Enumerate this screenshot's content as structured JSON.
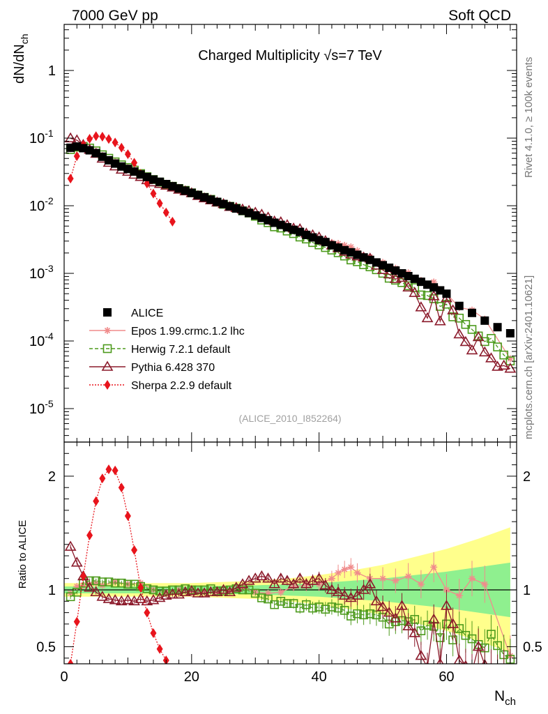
{
  "header": {
    "left": "7000 GeV pp",
    "right": "Soft QCD",
    "side_top": "Rivet 4.1.0, ≥ 100k events",
    "side_bottom": "mcplots.cern.ch [arXiv:2401.10621]"
  },
  "chart_data": {
    "type": "scatter",
    "title": "Charged Multiplicity √s=7 TeV",
    "watermark": "(ALICE_2010_I852264)",
    "ylabel": "dN/dN_ch",
    "ratio_ylabel": "Ratio to ALICE",
    "xlabel": "N_ch",
    "xlim": [
      0,
      71
    ],
    "ylim": [
      3.2e-06,
      4.8
    ],
    "ratio_ylim": [
      0.35,
      2.3
    ],
    "x_ticks": [
      "0",
      "20",
      "40",
      "60"
    ],
    "y_ticks": [
      "10^-5",
      "10^-4",
      "10^-3",
      "10^-2",
      "10^-1",
      "1"
    ],
    "ratio_ticks": [
      "0.5",
      "1",
      "2"
    ],
    "legend": [
      {
        "name": "ALICE",
        "color": "#000000",
        "marker": "square-filled",
        "line": "none"
      },
      {
        "name": "Epos 1.99.crmc.1.2 lhc",
        "color": "#f08c8c",
        "marker": "plus-star",
        "line": "solid"
      },
      {
        "name": "Herwig 7.2.1 default",
        "color": "#4c9a1c",
        "marker": "square-open",
        "line": "dashed"
      },
      {
        "name": "Pythia 6.428 370",
        "color": "#8b1a2b",
        "marker": "triangle-open",
        "line": "solid"
      },
      {
        "name": "Sherpa 2.2.9 default",
        "color": "#e8141c",
        "marker": "diamond-filled",
        "line": "dotted"
      }
    ],
    "alice": {
      "x": [
        1,
        2,
        3,
        4,
        5,
        6,
        7,
        8,
        9,
        10,
        11,
        12,
        13,
        14,
        15,
        16,
        17,
        18,
        19,
        20,
        21,
        22,
        23,
        24,
        25,
        26,
        27,
        28,
        29,
        30,
        31,
        32,
        33,
        34,
        35,
        36,
        37,
        38,
        39,
        40,
        41,
        42,
        43,
        44,
        45,
        46,
        47,
        48,
        49,
        50,
        51,
        52,
        53,
        54,
        55,
        56,
        57,
        58,
        59,
        60,
        62,
        64,
        66,
        68,
        70
      ],
      "y": [
        0.072,
        0.075,
        0.071,
        0.066,
        0.06,
        0.053,
        0.047,
        0.042,
        0.038,
        0.035,
        0.032,
        0.029,
        0.0266,
        0.0244,
        0.0226,
        0.0209,
        0.0194,
        0.018,
        0.0167,
        0.0155,
        0.0144,
        0.0133,
        0.0123,
        0.0114,
        0.0106,
        0.0098,
        0.0091,
        0.0084,
        0.0078,
        0.0072,
        0.0066,
        0.0061,
        0.0056,
        0.0052,
        0.0048,
        0.0044,
        0.0041,
        0.0037,
        0.0034,
        0.0031,
        0.0029,
        0.0026,
        0.0024,
        0.0022,
        0.00205,
        0.00188,
        0.00172,
        0.00158,
        0.00145,
        0.00132,
        0.00121,
        0.0011,
        0.001,
        0.00091,
        0.00083,
        0.00075,
        0.00068,
        0.00062,
        0.00056,
        0.0005,
        0.00033,
        0.00026,
        0.0002,
        0.00016,
        0.00013
      ]
    },
    "ratio_band": {
      "x": [
        0,
        5,
        10,
        15,
        20,
        25,
        30,
        35,
        40,
        45,
        50,
        55,
        60,
        65,
        70
      ],
      "stat_half_width": [
        0.03,
        0.03,
        0.03,
        0.03,
        0.03,
        0.035,
        0.04,
        0.05,
        0.06,
        0.08,
        0.1,
        0.13,
        0.16,
        0.2,
        0.24
      ],
      "syst_half_width": [
        0.06,
        0.06,
        0.06,
        0.06,
        0.06,
        0.07,
        0.08,
        0.1,
        0.13,
        0.17,
        0.22,
        0.29,
        0.36,
        0.45,
        0.55
      ]
    },
    "series": [
      {
        "name": "Epos 1.99.crmc.1.2 lhc",
        "x": [
          1,
          2,
          3,
          4,
          5,
          6,
          8,
          10,
          12,
          14,
          16,
          18,
          20,
          22,
          24,
          26,
          28,
          30,
          32,
          34,
          36,
          38,
          40,
          42,
          43,
          44,
          45,
          46,
          48,
          50,
          52,
          54,
          56,
          58,
          60,
          62,
          64,
          66,
          70
        ],
        "ratio": [
          0.97,
          1.03,
          1.04,
          1.05,
          1.06,
          1.04,
          1.07,
          1.05,
          1.06,
          1.0,
          0.98,
          1.0,
          0.97,
          0.98,
          0.97,
          0.99,
          1.02,
          0.98,
          0.97,
          0.98,
          1.03,
          1.04,
          1.05,
          1.1,
          1.15,
          1.18,
          1.2,
          1.15,
          1.1,
          1.1,
          1.08,
          1.12,
          1.05,
          1.2,
          1.0,
          0.95,
          1.1,
          1.05,
          0.42
        ]
      },
      {
        "name": "Herwig 7.2.1 default",
        "x": [
          1,
          2,
          3,
          4,
          5,
          6,
          7,
          8,
          9,
          10,
          11,
          12,
          13,
          14,
          15,
          16,
          17,
          18,
          19,
          20,
          21,
          22,
          23,
          24,
          25,
          26,
          27,
          28,
          29,
          30,
          31,
          32,
          33,
          34,
          35,
          36,
          37,
          38,
          39,
          40,
          41,
          42,
          43,
          44,
          45,
          46,
          47,
          48,
          49,
          50,
          51,
          52,
          53,
          54,
          55,
          56,
          57,
          58,
          59,
          60,
          61,
          62,
          63,
          64,
          65,
          66,
          67,
          68,
          69,
          70
        ],
        "ratio": [
          0.94,
          0.98,
          1.06,
          1.08,
          1.08,
          1.07,
          1.07,
          1.06,
          1.06,
          1.05,
          1.05,
          1.03,
          1.01,
          1.0,
          0.99,
          0.99,
          1.0,
          1.0,
          1.01,
          1.0,
          1.0,
          1.0,
          1.01,
          0.99,
          0.99,
          1.0,
          1.01,
          1.0,
          1.0,
          0.97,
          0.93,
          0.92,
          0.87,
          0.9,
          0.88,
          0.88,
          0.84,
          0.87,
          0.84,
          0.85,
          0.83,
          0.85,
          0.84,
          0.82,
          0.77,
          0.79,
          0.78,
          0.79,
          0.78,
          0.76,
          0.7,
          0.72,
          0.73,
          0.72,
          0.74,
          0.64,
          0.69,
          0.68,
          0.58,
          0.7,
          0.56,
          0.66,
          0.6,
          0.57,
          0.52,
          0.49,
          0.61,
          0.51,
          0.43,
          0.39
        ]
      },
      {
        "name": "Pythia 6.428 370",
        "x": [
          1,
          2,
          3,
          4,
          5,
          6,
          7,
          8,
          9,
          10,
          11,
          12,
          13,
          14,
          15,
          16,
          17,
          18,
          19,
          20,
          21,
          22,
          23,
          24,
          25,
          26,
          27,
          28,
          29,
          30,
          31,
          32,
          33,
          34,
          35,
          36,
          37,
          38,
          39,
          40,
          41,
          42,
          43,
          44,
          45,
          46,
          47,
          48,
          49,
          50,
          51,
          52,
          53,
          54,
          55,
          56,
          57,
          58,
          59,
          60,
          61,
          62,
          63,
          64,
          65,
          66,
          67,
          68,
          69,
          70
        ],
        "ratio": [
          1.38,
          1.24,
          1.12,
          1.02,
          0.98,
          0.94,
          0.92,
          0.91,
          0.9,
          0.91,
          0.9,
          0.92,
          0.9,
          0.91,
          0.93,
          0.95,
          0.96,
          0.96,
          0.98,
          0.99,
          0.97,
          0.97,
          0.98,
          0.98,
          1.0,
          0.98,
          1.02,
          1.05,
          1.08,
          1.1,
          1.12,
          1.1,
          1.05,
          1.1,
          1.08,
          1.05,
          1.1,
          1.05,
          1.08,
          1.1,
          1.04,
          1.0,
          0.98,
          0.95,
          0.93,
          0.95,
          1.0,
          1.05,
          0.9,
          0.85,
          0.8,
          0.75,
          0.86,
          0.68,
          0.62,
          0.42,
          0.32,
          0.74,
          0.35,
          0.86,
          0.7,
          0.38,
          0.33,
          0.28,
          0.5,
          0.34,
          0.31,
          0.26,
          0.3,
          0.3
        ]
      },
      {
        "name": "Sherpa 2.2.9 default",
        "x": [
          1,
          2,
          3,
          4,
          5,
          6,
          7,
          8,
          9,
          10,
          11,
          12,
          13,
          14,
          15,
          16,
          17
        ],
        "ratio": [
          0.35,
          0.72,
          1.12,
          1.48,
          1.78,
          1.98,
          2.06,
          2.05,
          1.9,
          1.65,
          1.35,
          1.02,
          0.8,
          0.62,
          0.48,
          0.38,
          0.3
        ]
      }
    ]
  }
}
